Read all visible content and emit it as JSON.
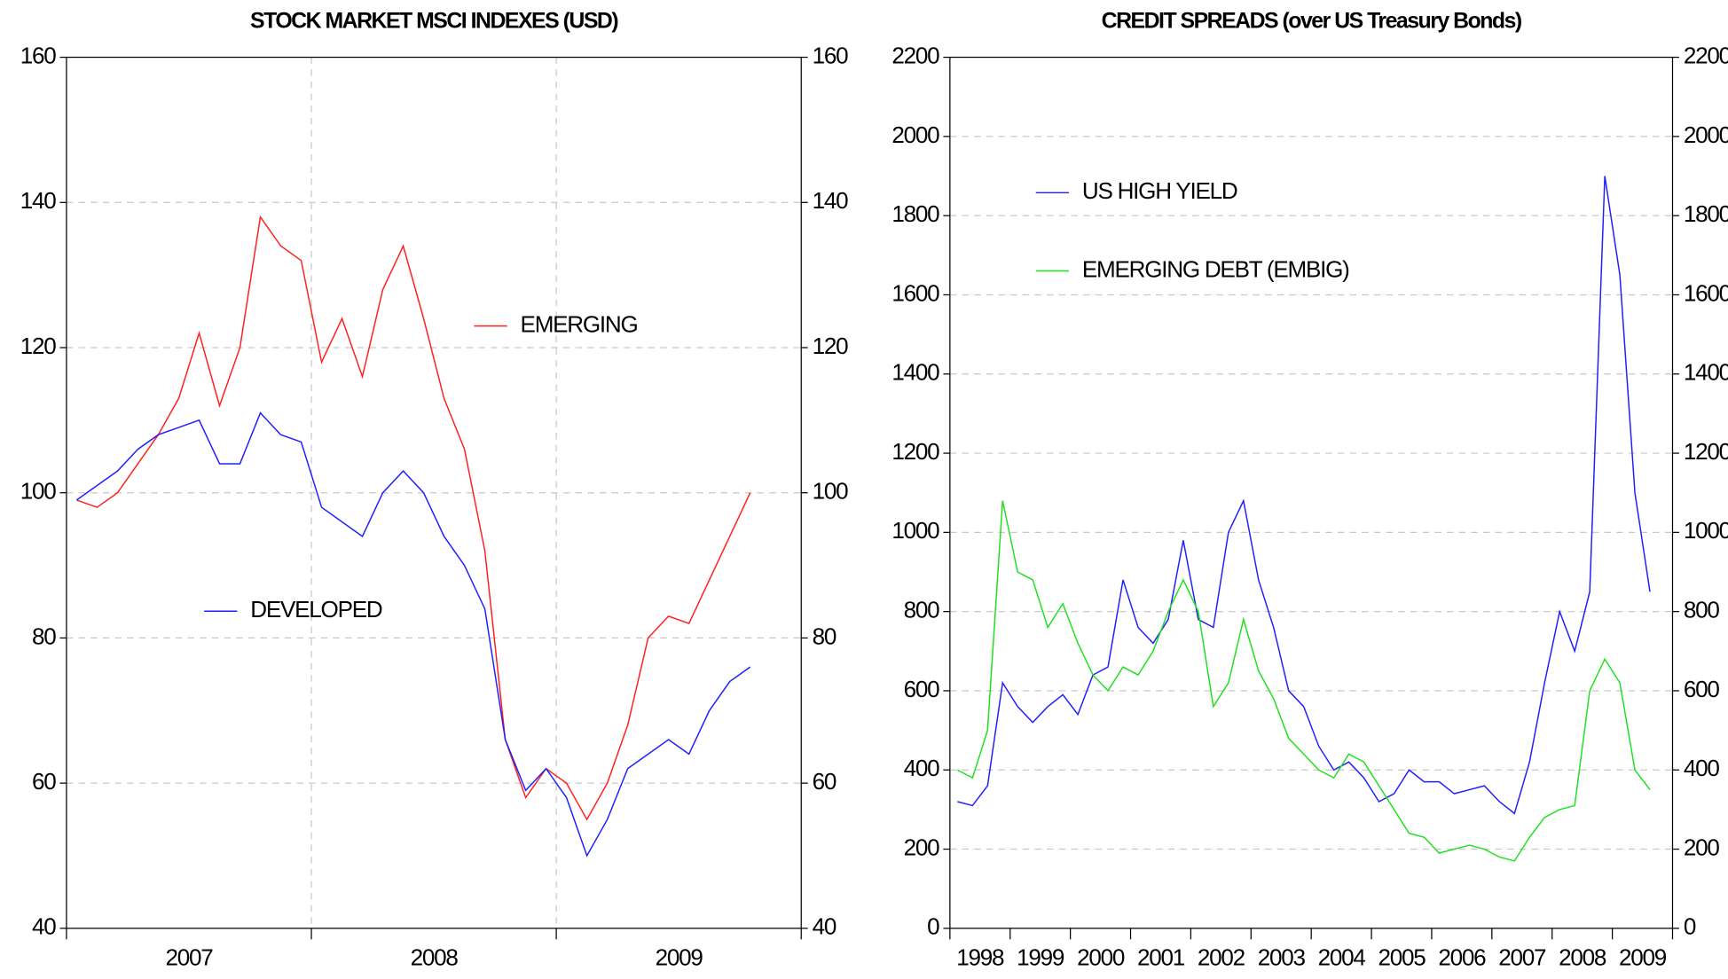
{
  "chart_data": [
    {
      "type": "line",
      "title": "STOCK MARKET MSCI INDEXES (USD)",
      "categories": [
        "2007",
        null,
        null,
        null,
        null,
        null,
        null,
        null,
        null,
        null,
        null,
        null,
        "2008",
        null,
        null,
        null,
        null,
        null,
        null,
        null,
        null,
        null,
        null,
        null,
        "2009",
        null,
        null,
        null,
        null,
        null,
        null,
        null,
        null,
        null,
        null,
        null
      ],
      "series": [
        {
          "name": "EMERGING",
          "color": "#ff2020",
          "values": [
            99,
            98,
            100,
            104,
            108,
            113,
            122,
            112,
            120,
            138,
            134,
            132,
            118,
            124,
            116,
            128,
            134,
            124,
            113,
            106,
            92,
            66,
            58,
            62,
            60,
            55,
            60,
            68,
            80,
            83,
            82,
            88,
            94,
            100,
            null,
            null
          ]
        },
        {
          "name": "DEVELOPED",
          "color": "#2020ff",
          "values": [
            99,
            101,
            103,
            106,
            108,
            109,
            110,
            104,
            104,
            111,
            108,
            107,
            98,
            96,
            94,
            100,
            103,
            100,
            94,
            90,
            84,
            66,
            59,
            62,
            58,
            50,
            55,
            62,
            64,
            66,
            64,
            70,
            74,
            76,
            null,
            null
          ]
        }
      ],
      "ylim": [
        40,
        160
      ],
      "yticks": [
        40,
        60,
        80,
        100,
        120,
        140,
        160
      ],
      "grid": true
    },
    {
      "type": "line",
      "title": "CREDIT SPREADS (over US Treasury Bonds)",
      "categories": [
        "1998",
        null,
        null,
        null,
        "1999",
        null,
        null,
        null,
        "2000",
        null,
        null,
        null,
        "2001",
        null,
        null,
        null,
        "2002",
        null,
        null,
        null,
        "2003",
        null,
        null,
        null,
        "2004",
        null,
        null,
        null,
        "2005",
        null,
        null,
        null,
        "2006",
        null,
        null,
        null,
        "2007",
        null,
        null,
        null,
        "2008",
        null,
        null,
        null,
        "2009",
        null,
        null,
        null
      ],
      "series": [
        {
          "name": "US HIGH YIELD",
          "color": "#2020ff",
          "values": [
            320,
            310,
            360,
            620,
            560,
            520,
            560,
            590,
            540,
            640,
            660,
            880,
            760,
            720,
            780,
            980,
            780,
            760,
            1000,
            1080,
            880,
            760,
            600,
            560,
            460,
            400,
            420,
            380,
            320,
            340,
            400,
            370,
            370,
            340,
            350,
            360,
            320,
            290,
            420,
            620,
            800,
            700,
            850,
            1900,
            1650,
            1100,
            850,
            null
          ]
        },
        {
          "name": "EMERGING DEBT (EMBIG)",
          "color": "#20e020",
          "values": [
            400,
            380,
            500,
            1080,
            900,
            880,
            760,
            820,
            720,
            640,
            600,
            660,
            640,
            700,
            800,
            880,
            800,
            560,
            620,
            780,
            650,
            580,
            480,
            440,
            400,
            380,
            440,
            420,
            360,
            300,
            240,
            230,
            190,
            200,
            210,
            200,
            180,
            170,
            230,
            280,
            300,
            310,
            600,
            680,
            620,
            400,
            350,
            null
          ]
        }
      ],
      "ylim": [
        0,
        2200
      ],
      "yticks": [
        0,
        200,
        400,
        600,
        800,
        1000,
        1200,
        1400,
        1600,
        1800,
        2000,
        2200
      ],
      "grid": true
    }
  ]
}
